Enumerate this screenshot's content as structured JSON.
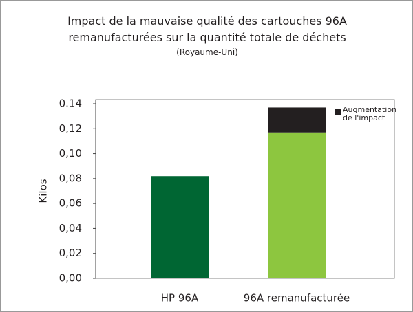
{
  "chart_data": {
    "type": "stacked-bar",
    "title": "Impact de la mauvaise qualité des cartouches 96A remanufacturées sur la quantité totale de déchets",
    "subtitle": "(Royaume-Uni)",
    "ylabel": "Kilos",
    "categories": [
      "HP 96A",
      "96A remanufacturée"
    ],
    "series": [
      {
        "colors": [
          "#006633",
          "#8dc63f"
        ],
        "values": [
          0.082,
          0.117
        ]
      },
      {
        "name": "Augmentation de l'impact",
        "color": "#231f20",
        "values": [
          null,
          0.02
        ]
      }
    ],
    "ylim": [
      0,
      0.14
    ],
    "yticks": [
      {
        "value": 0,
        "label": "0,00"
      },
      {
        "value": 0.02,
        "label": "0,02"
      },
      {
        "value": 0.04,
        "label": "0,04"
      },
      {
        "value": 0.06,
        "label": "0,06"
      },
      {
        "value": 0.08,
        "label": "0,08"
      },
      {
        "value": 0.1,
        "label": "0,10"
      },
      {
        "value": 0.12,
        "label": "0,12"
      },
      0.14
    ],
    "legend": "top-right"
  }
}
